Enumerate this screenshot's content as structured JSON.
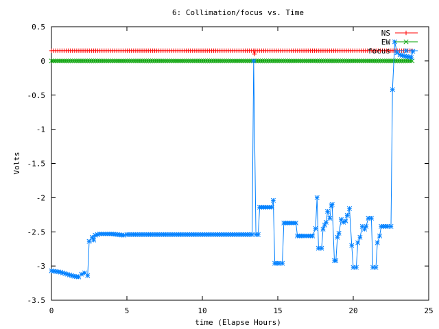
{
  "chart_data": {
    "type": "line",
    "title": "6: Collimation/focus vs. Time",
    "xlabel": "time (Elapse Hours)",
    "ylabel": "Volts",
    "xlim": [
      0,
      25
    ],
    "ylim": [
      -3.5,
      0.5
    ],
    "xticks": [
      0,
      5,
      10,
      15,
      20,
      25
    ],
    "yticks": [
      -3.5,
      -3,
      -2.5,
      -2,
      -1.5,
      -1,
      -0.5,
      0,
      0.5
    ],
    "xtick_labels": [
      "0",
      "5",
      "10",
      "15",
      "20",
      "25"
    ],
    "ytick_labels": [
      "-3.5",
      "-3",
      "-2.5",
      "-2",
      "-1.5",
      "-1",
      "-0.5",
      "0",
      "0.5"
    ],
    "grid": false,
    "legend_position": "top-right",
    "series": [
      {
        "name": "NS",
        "color": "#ff0000",
        "marker": "plus",
        "points": [
          [
            0,
            0.15
          ],
          [
            13.4,
            0.15
          ],
          [
            13.45,
            0.1
          ],
          [
            13.5,
            0.15
          ],
          [
            23.9,
            0.15
          ]
        ]
      },
      {
        "name": "EW",
        "color": "#00a000",
        "marker": "x",
        "points": [
          [
            0,
            0.0
          ],
          [
            23.9,
            0.0
          ]
        ]
      },
      {
        "name": "focus",
        "color": "#0080ff",
        "marker": "star",
        "points": [
          [
            0.0,
            -3.07
          ],
          [
            0.3,
            -3.08
          ],
          [
            0.6,
            -3.09
          ],
          [
            0.9,
            -3.11
          ],
          [
            1.2,
            -3.13
          ],
          [
            1.5,
            -3.15
          ],
          [
            1.8,
            -3.16
          ],
          [
            2.0,
            -3.12
          ],
          [
            2.2,
            -3.1
          ],
          [
            2.4,
            -3.14
          ],
          [
            2.5,
            -2.64
          ],
          [
            2.7,
            -2.58
          ],
          [
            2.8,
            -2.62
          ],
          [
            2.9,
            -2.55
          ],
          [
            3.2,
            -2.53
          ],
          [
            3.6,
            -2.53
          ],
          [
            4.0,
            -2.53
          ],
          [
            4.4,
            -2.54
          ],
          [
            4.8,
            -2.55
          ],
          [
            5.0,
            -2.54
          ],
          [
            6.0,
            -2.54
          ],
          [
            7.0,
            -2.54
          ],
          [
            8.0,
            -2.54
          ],
          [
            9.0,
            -2.54
          ],
          [
            10.0,
            -2.54
          ],
          [
            11.0,
            -2.54
          ],
          [
            12.0,
            -2.54
          ],
          [
            13.0,
            -2.54
          ],
          [
            13.3,
            -2.54
          ],
          [
            13.4,
            0.0
          ],
          [
            13.55,
            -2.54
          ],
          [
            13.7,
            -2.54
          ],
          [
            13.8,
            -2.14
          ],
          [
            14.2,
            -2.14
          ],
          [
            14.6,
            -2.14
          ],
          [
            14.7,
            -2.04
          ],
          [
            14.8,
            -2.96
          ],
          [
            15.1,
            -2.96
          ],
          [
            15.3,
            -2.96
          ],
          [
            15.4,
            -2.37
          ],
          [
            15.8,
            -2.37
          ],
          [
            16.2,
            -2.37
          ],
          [
            16.3,
            -2.56
          ],
          [
            16.8,
            -2.56
          ],
          [
            17.3,
            -2.56
          ],
          [
            17.5,
            -2.45
          ],
          [
            17.6,
            -2.0
          ],
          [
            17.7,
            -2.74
          ],
          [
            17.9,
            -2.74
          ],
          [
            18.0,
            -2.46
          ],
          [
            18.1,
            -2.4
          ],
          [
            18.2,
            -2.36
          ],
          [
            18.3,
            -2.2
          ],
          [
            18.45,
            -2.3
          ],
          [
            18.55,
            -2.12
          ],
          [
            18.6,
            -2.1
          ],
          [
            18.75,
            -2.92
          ],
          [
            18.85,
            -2.92
          ],
          [
            18.95,
            -2.58
          ],
          [
            19.05,
            -2.52
          ],
          [
            19.2,
            -2.32
          ],
          [
            19.35,
            -2.36
          ],
          [
            19.5,
            -2.34
          ],
          [
            19.6,
            -2.26
          ],
          [
            19.75,
            -2.16
          ],
          [
            19.9,
            -2.7
          ],
          [
            20.0,
            -3.02
          ],
          [
            20.2,
            -3.02
          ],
          [
            20.3,
            -2.66
          ],
          [
            20.45,
            -2.58
          ],
          [
            20.6,
            -2.42
          ],
          [
            20.75,
            -2.46
          ],
          [
            20.85,
            -2.42
          ],
          [
            21.0,
            -2.3
          ],
          [
            21.2,
            -2.3
          ],
          [
            21.3,
            -3.02
          ],
          [
            21.5,
            -3.02
          ],
          [
            21.6,
            -2.66
          ],
          [
            21.75,
            -2.56
          ],
          [
            21.85,
            -2.42
          ],
          [
            22.0,
            -2.42
          ],
          [
            22.3,
            -2.42
          ],
          [
            22.5,
            -2.42
          ],
          [
            22.6,
            -0.42
          ],
          [
            22.75,
            0.28
          ],
          [
            22.9,
            0.12
          ],
          [
            23.1,
            0.09
          ],
          [
            23.4,
            0.07
          ],
          [
            23.7,
            0.06
          ],
          [
            23.85,
            0.05
          ],
          [
            23.95,
            0.14
          ]
        ]
      }
    ]
  }
}
